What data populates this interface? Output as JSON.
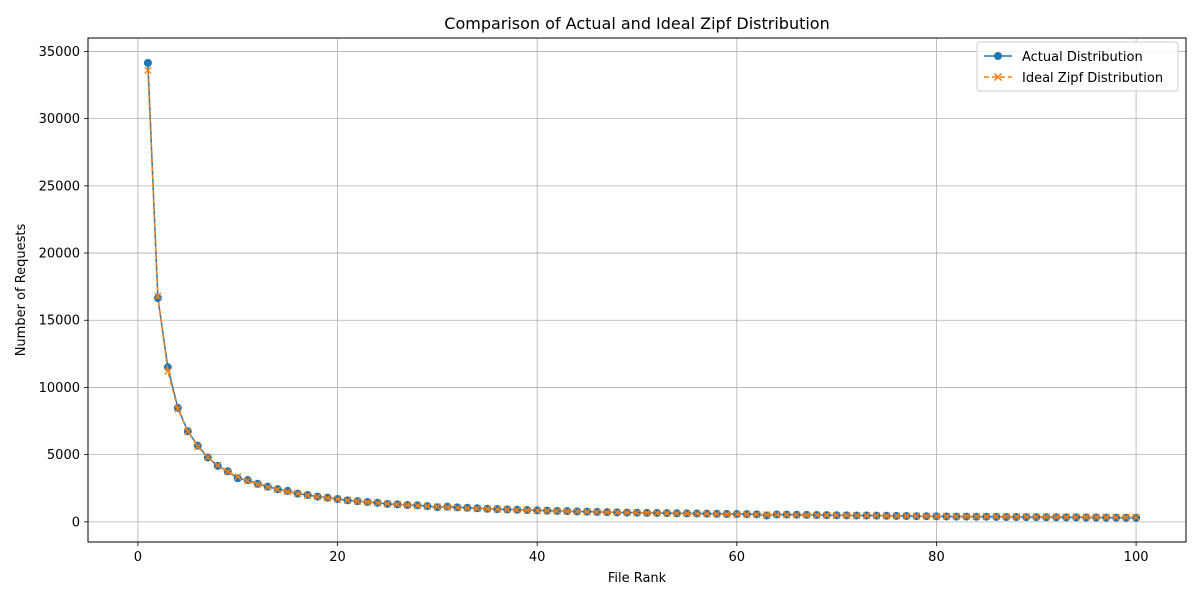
{
  "chart_data": {
    "type": "line",
    "title": "Comparison of Actual and Ideal Zipf Distribution",
    "xlabel": "File Rank",
    "ylabel": "Number of Requests",
    "xlim": [
      -5,
      105
    ],
    "ylim": [
      -1500,
      36000
    ],
    "xticks": [
      0,
      20,
      40,
      60,
      80,
      100
    ],
    "yticks": [
      0,
      5000,
      10000,
      15000,
      20000,
      25000,
      30000,
      35000
    ],
    "grid": true,
    "legend_position": "top-right",
    "x": [
      1,
      2,
      3,
      4,
      5,
      6,
      7,
      8,
      9,
      10,
      11,
      12,
      13,
      14,
      15,
      16,
      17,
      18,
      19,
      20,
      21,
      22,
      23,
      24,
      25,
      26,
      27,
      28,
      29,
      30,
      31,
      32,
      33,
      34,
      35,
      36,
      37,
      38,
      39,
      40,
      41,
      42,
      43,
      44,
      45,
      46,
      47,
      48,
      49,
      50,
      51,
      52,
      53,
      54,
      55,
      56,
      57,
      58,
      59,
      60,
      61,
      62,
      63,
      64,
      65,
      66,
      67,
      68,
      69,
      70,
      71,
      72,
      73,
      74,
      75,
      76,
      77,
      78,
      79,
      80,
      81,
      82,
      83,
      84,
      85,
      86,
      87,
      88,
      89,
      90,
      91,
      92,
      93,
      94,
      95,
      96,
      97,
      98,
      99,
      100
    ],
    "series": [
      {
        "name": "Actual Distribution",
        "color": "#1f77b4",
        "line_style": "solid",
        "marker": "circle",
        "values": [
          34150,
          16650,
          11500,
          8480,
          6740,
          5670,
          4790,
          4160,
          3760,
          3240,
          3110,
          2830,
          2620,
          2430,
          2300,
          2100,
          2000,
          1880,
          1800,
          1700,
          1600,
          1540,
          1480,
          1420,
          1330,
          1300,
          1250,
          1230,
          1170,
          1090,
          1130,
          1080,
          1050,
          1010,
          970,
          950,
          920,
          900,
          880,
          860,
          830,
          810,
          800,
          770,
          760,
          740,
          720,
          700,
          690,
          680,
          670,
          660,
          650,
          640,
          630,
          620,
          610,
          600,
          590,
          580,
          570,
          560,
          470,
          550,
          540,
          530,
          520,
          510,
          500,
          490,
          480,
          470,
          470,
          460,
          450,
          440,
          430,
          420,
          420,
          410,
          400,
          390,
          390,
          380,
          380,
          370,
          360,
          360,
          350,
          350,
          340,
          340,
          330,
          330,
          320,
          320,
          310,
          310,
          300,
          300
        ]
      },
      {
        "name": "Ideal Zipf Distribution",
        "color": "#ff7f0e",
        "line_style": "dashed",
        "marker": "x",
        "values": [
          33600,
          16800,
          11200,
          8400,
          6720,
          5600,
          4800,
          4200,
          3733,
          3360,
          3055,
          2800,
          2585,
          2400,
          2240,
          2100,
          1976,
          1867,
          1768,
          1680,
          1600,
          1527,
          1461,
          1400,
          1344,
          1292,
          1244,
          1200,
          1159,
          1120,
          1084,
          1050,
          1018,
          988,
          960,
          933,
          908,
          884,
          862,
          840,
          820,
          800,
          781,
          764,
          747,
          730,
          715,
          700,
          686,
          672,
          659,
          646,
          634,
          622,
          611,
          600,
          589,
          579,
          569,
          560,
          551,
          542,
          533,
          525,
          517,
          509,
          501,
          494,
          487,
          480,
          473,
          467,
          460,
          454,
          448,
          442,
          436,
          431,
          425,
          420,
          415,
          410,
          405,
          400,
          395,
          391,
          386,
          382,
          378,
          373,
          369,
          365,
          361,
          357,
          354,
          350,
          346,
          343,
          339,
          336
        ]
      }
    ]
  }
}
